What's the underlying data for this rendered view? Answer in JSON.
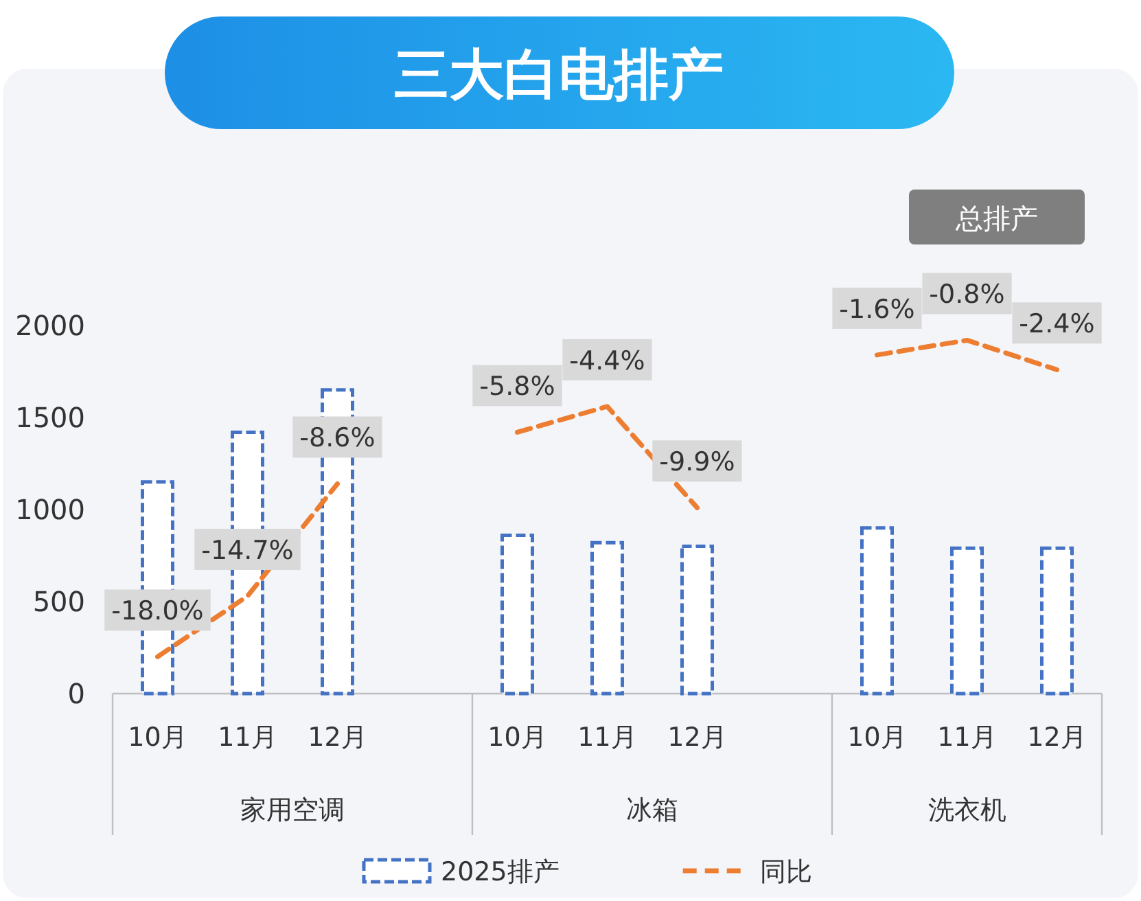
{
  "chart_data": {
    "type": "bar",
    "title": "三大白电排产",
    "categories": [
      "10月",
      "11月",
      "12月",
      null,
      "10月",
      "11月",
      "12月",
      null,
      "10月",
      "11月",
      "12月"
    ],
    "series": [
      {
        "name": "2025排产",
        "color": "#4472c4",
        "values": [
          1150,
          1420,
          1650,
          null,
          860,
          820,
          800,
          null,
          900,
          790,
          790
        ]
      },
      {
        "name": "同比",
        "type": "line",
        "axis": "y2",
        "color": "#ed7d31",
        "values": [
          -18.0,
          -14.7,
          -8.6,
          null,
          -5.8,
          -4.4,
          -9.9,
          null,
          -1.6,
          -0.8,
          -2.4
        ],
        "value_labels": [
          "-18.0%",
          "-14.7%",
          "-8.6%",
          null,
          "-5.8%",
          "-4.4%",
          "-9.9%",
          null,
          "-1.6%",
          "-0.8%",
          "-2.4%"
        ]
      }
    ],
    "ylim": [
      0,
      2000
    ],
    "yticks": [
      0,
      500,
      1000,
      1500,
      2000
    ],
    "y2lim": [
      -20,
      0
    ],
    "line_style": "dashed",
    "legend": "bottom",
    "grid": false,
    "annotations": [
      "总排产",
      "家用空调",
      "冰箱",
      "洗衣机"
    ]
  }
}
